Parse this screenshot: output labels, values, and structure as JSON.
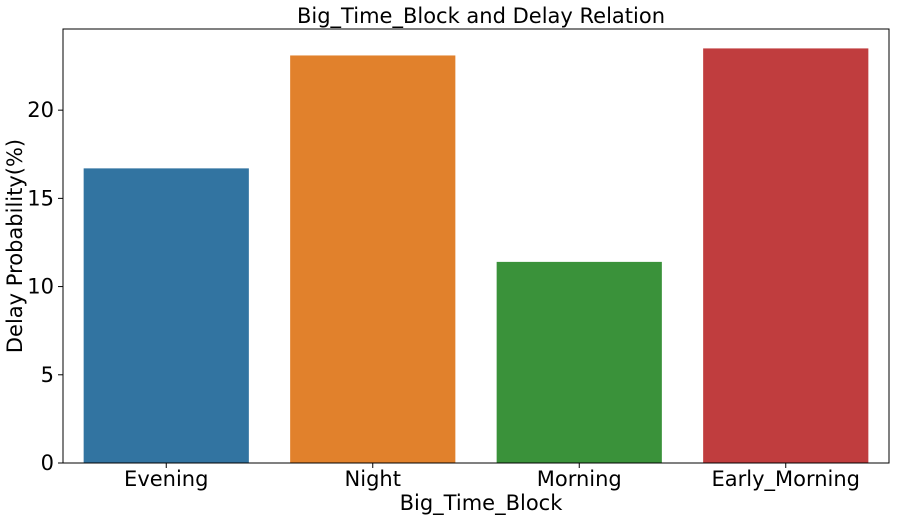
{
  "chart_data": {
    "type": "bar",
    "title": "Big_Time_Block and Delay Relation",
    "xlabel": "Big_Time_Block",
    "ylabel": "Delay Probability(%)",
    "categories": [
      "Evening",
      "Night",
      "Morning",
      "Early_Morning"
    ],
    "values": [
      16.7,
      23.1,
      11.4,
      23.5
    ],
    "colors": [
      "#3274a1",
      "#e1812c",
      "#3a923a",
      "#c03d3e"
    ],
    "ylim": [
      0,
      24.6
    ],
    "yticks": [
      0,
      5,
      10,
      15,
      20
    ],
    "grid": false,
    "legend": "none"
  }
}
